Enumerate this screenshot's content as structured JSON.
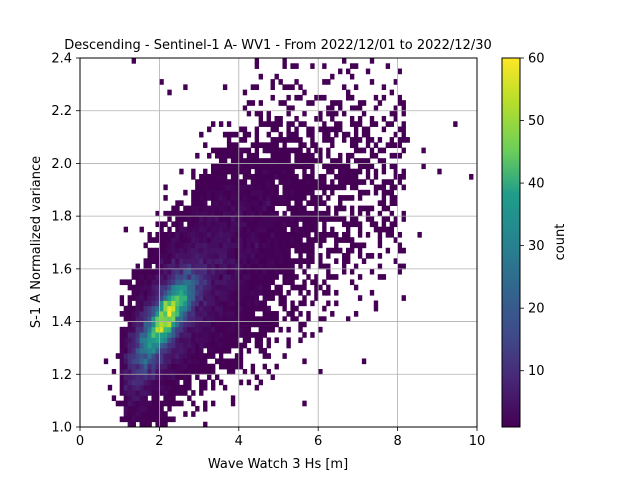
{
  "chart_data": {
    "type": "heatmap",
    "title": "Descending - Sentinel-1 A- WV1 - From 2022/12/01 to 2022/12/30",
    "xlabel": "Wave Watch 3 Hs [m]",
    "ylabel": "S-1 A Normalized variance",
    "xlim": [
      0,
      10
    ],
    "ylim": [
      1.0,
      2.4
    ],
    "xticks": [
      "0",
      "2",
      "4",
      "6",
      "8",
      "10"
    ],
    "yticks": [
      "1.0",
      "1.2",
      "1.4",
      "1.6",
      "1.8",
      "2.0",
      "2.2",
      "2.4"
    ],
    "grid": true,
    "colormap": "viridis",
    "colorbar": {
      "label": "count",
      "range": [
        1,
        60
      ],
      "ticks": [
        "10",
        "20",
        "30",
        "40",
        "50",
        "60"
      ]
    },
    "density_peak": {
      "x": 2.2,
      "y": 1.43,
      "count": 60
    },
    "density_ridge": [
      {
        "x": 1.2,
        "y": 1.22
      },
      {
        "x": 2.0,
        "y": 1.38
      },
      {
        "x": 2.4,
        "y": 1.46
      },
      {
        "x": 3.0,
        "y": 1.55
      },
      {
        "x": 4.0,
        "y": 1.68
      },
      {
        "x": 5.0,
        "y": 1.78
      },
      {
        "x": 6.0,
        "y": 1.85
      }
    ],
    "sparse_points": [
      {
        "x": 1.35,
        "y": 2.39
      },
      {
        "x": 2.0,
        "y": 2.32
      },
      {
        "x": 2.3,
        "y": 2.27
      },
      {
        "x": 2.6,
        "y": 2.29
      },
      {
        "x": 6.6,
        "y": 2.36
      },
      {
        "x": 5.4,
        "y": 2.24
      },
      {
        "x": 8.7,
        "y": 1.99
      },
      {
        "x": 9.0,
        "y": 1.96
      },
      {
        "x": 9.8,
        "y": 1.95
      },
      {
        "x": 8.5,
        "y": 1.72
      },
      {
        "x": 8.1,
        "y": 1.58
      },
      {
        "x": 7.9,
        "y": 1.64
      },
      {
        "x": 7.5,
        "y": 1.65
      },
      {
        "x": 0.7,
        "y": 1.25
      },
      {
        "x": 0.8,
        "y": 1.1
      },
      {
        "x": 1.3,
        "y": 1.03
      },
      {
        "x": 2.3,
        "y": 1.03
      },
      {
        "x": 2.0,
        "y": 1.05
      },
      {
        "x": 4.5,
        "y": 1.29
      }
    ]
  }
}
